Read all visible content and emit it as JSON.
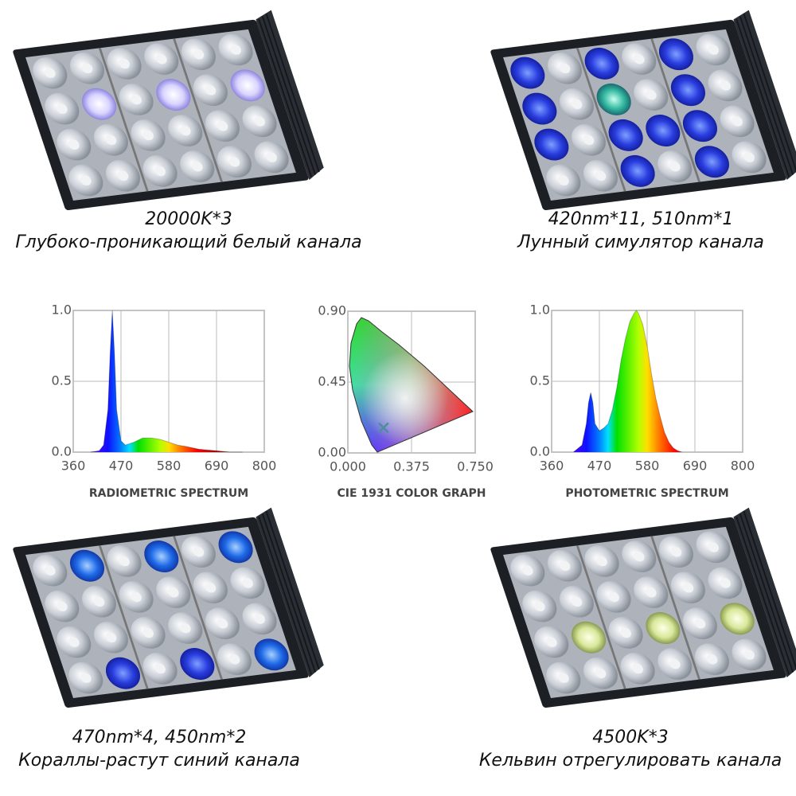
{
  "panels": [
    {
      "spec": "20000K*3",
      "label": "Глубоко-проникающий белый канала"
    },
    {
      "spec": "420nm*11, 510nm*1",
      "label": "Лунный симулятор канала"
    },
    {
      "spec": "470nm*4, 450nm*2",
      "label": "Кораллы-растут синий канала"
    },
    {
      "spec": "4500K*3",
      "label": "Кельвин отрегулировать канала"
    }
  ],
  "chart_data": [
    {
      "type": "area",
      "title": "RADIOMETRIC SPECTRUM",
      "x": [
        400,
        420,
        430,
        440,
        445,
        450,
        455,
        460,
        470,
        480,
        500,
        520,
        540,
        560,
        580,
        600,
        620,
        650,
        690,
        720,
        750
      ],
      "values": [
        0,
        0.01,
        0.05,
        0.3,
        0.7,
        1.0,
        0.7,
        0.3,
        0.08,
        0.05,
        0.07,
        0.1,
        0.1,
        0.09,
        0.07,
        0.05,
        0.04,
        0.02,
        0.01,
        0,
        0
      ],
      "xlim": [
        360,
        800
      ],
      "xticks": [
        360,
        470,
        580,
        690,
        800
      ],
      "ylim": [
        0,
        1
      ],
      "yticks": [
        {
          "value": 0,
          "label": "0.0"
        },
        0.5,
        {
          "value": 1,
          "label": "1.0"
        }
      ],
      "grid": true
    },
    {
      "type": "scatter",
      "title": "CIE 1931 COLOR GRAPH",
      "x": [
        0.21
      ],
      "values": [
        0.16
      ],
      "color": "#4a8f9a",
      "xlim": [
        0,
        0.75
      ],
      "xticks": [
        {
          "value": 0,
          "label": "0.000"
        },
        0.375,
        {
          "value": 0.75,
          "label": "0.750"
        }
      ],
      "ylim": [
        0,
        0.9
      ],
      "yticks": [
        {
          "value": 0,
          "label": "0.00"
        },
        0.45,
        {
          "value": 0.9,
          "label": "0.90"
        }
      ],
      "grid": true
    },
    {
      "type": "area",
      "title": "PHOTOMETRIC SPECTRUM",
      "x": [
        410,
        430,
        440,
        445,
        450,
        455,
        460,
        470,
        480,
        490,
        500,
        510,
        520,
        530,
        540,
        550,
        555,
        560,
        570,
        580,
        590,
        600,
        610,
        620,
        630,
        640,
        650,
        660
      ],
      "values": [
        0,
        0.05,
        0.2,
        0.35,
        0.42,
        0.35,
        0.2,
        0.15,
        0.17,
        0.2,
        0.3,
        0.45,
        0.65,
        0.8,
        0.92,
        0.98,
        1.0,
        0.98,
        0.9,
        0.75,
        0.55,
        0.38,
        0.25,
        0.14,
        0.07,
        0.03,
        0.01,
        0
      ],
      "xlim": [
        360,
        800
      ],
      "xticks": [
        360,
        470,
        580,
        690,
        800
      ],
      "ylim": [
        0,
        1
      ],
      "yticks": [
        {
          "value": 0,
          "label": "0.0"
        },
        0.5,
        {
          "value": 1,
          "label": "1.0"
        }
      ],
      "grid": true
    }
  ]
}
